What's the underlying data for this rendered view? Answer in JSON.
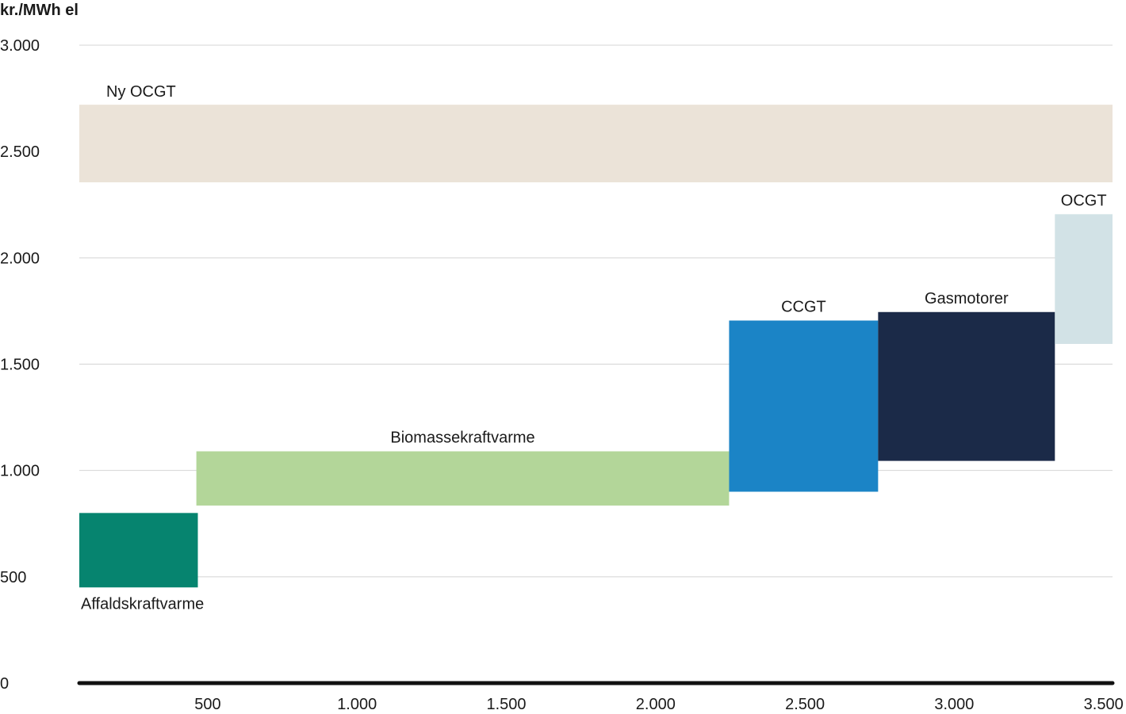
{
  "chart_data": {
    "type": "bar",
    "subtype": "supply-curve (variable-width floating bars)",
    "title": "",
    "ylabel": "kr./MWh el",
    "xlabel": "",
    "xlim": [
      70,
      3530
    ],
    "ylim": [
      0,
      3000
    ],
    "xticks": [
      500,
      1000,
      1500,
      2000,
      2500,
      3000,
      3500
    ],
    "xtick_labels": [
      "500",
      "1.000",
      "1.500",
      "2.000",
      "2.500",
      "3.000",
      "3.500"
    ],
    "yticks": [
      0,
      500,
      1000,
      1500,
      2000,
      2500,
      3000
    ],
    "ytick_labels": [
      "0",
      "500",
      "1.000",
      "1.500",
      "2.000",
      "2.500",
      "3.000"
    ],
    "grid": "horizontal",
    "legend": "none",
    "bars": [
      {
        "name": "Ny OCGT",
        "x0": 70,
        "x1": 3530,
        "y0": 2355,
        "y1": 2720,
        "color": "#ebe3d8",
        "label_pos": "above-left"
      },
      {
        "name": "Affaldskraftvarme",
        "x0": 70,
        "x1": 467,
        "y0": 450,
        "y1": 800,
        "color": "#06846f",
        "label_pos": "below-left"
      },
      {
        "name": "Biomassekraftvarme",
        "x0": 462,
        "x1": 2246,
        "y0": 835,
        "y1": 1090,
        "color": "#b3d699",
        "label_pos": "above"
      },
      {
        "name": "CCGT",
        "x0": 2246,
        "x1": 2745,
        "y0": 900,
        "y1": 1705,
        "color": "#1b84c6",
        "label_pos": "above"
      },
      {
        "name": "Gasmotorer",
        "x0": 2745,
        "x1": 3337,
        "y0": 1045,
        "y1": 1745,
        "color": "#1b2a48",
        "label_pos": "above"
      },
      {
        "name": "OCGT",
        "x0": 3337,
        "x1": 3530,
        "y0": 1595,
        "y1": 2205,
        "color": "#d2e2e6",
        "label_pos": "above"
      }
    ]
  }
}
